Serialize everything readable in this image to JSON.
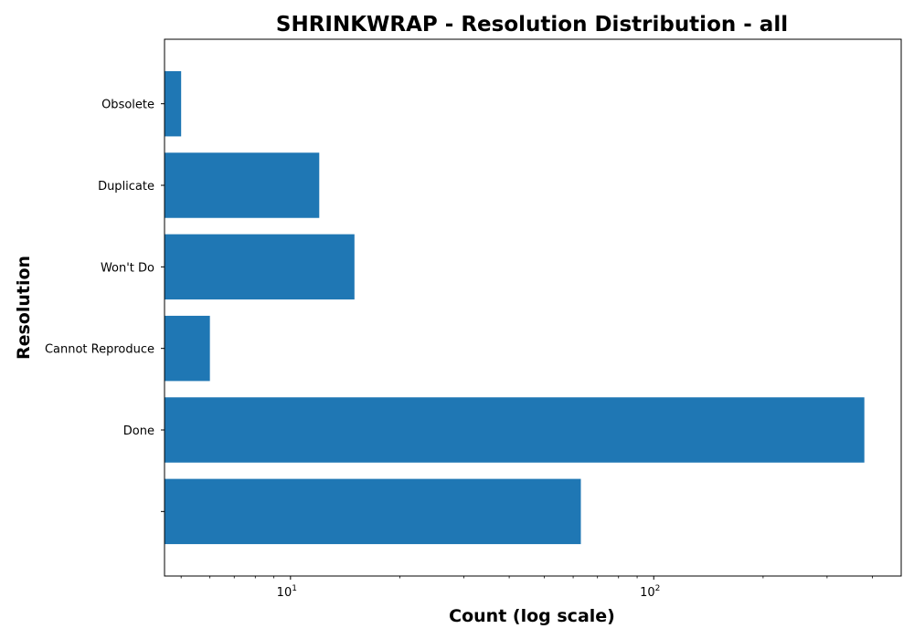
{
  "chart_data": {
    "type": "bar",
    "orientation": "horizontal",
    "title": "SHRINKWRAP - Resolution Distribution - all",
    "xlabel": "Count (log scale)",
    "ylabel": "Resolution",
    "x_scale": "log",
    "xlim": [
      4.5,
      480
    ],
    "x_major_ticks": [
      {
        "value": 10,
        "base": "10",
        "exp": "1"
      },
      {
        "value": 100,
        "base": "10",
        "exp": "2"
      }
    ],
    "categories": [
      "",
      "Done",
      "Cannot Reproduce",
      "Won't Do",
      "Duplicate",
      "Obsolete"
    ],
    "values": [
      63,
      380,
      6,
      15,
      12,
      5
    ],
    "bar_color": "#1f77b4",
    "grid": false,
    "legend": "none"
  }
}
